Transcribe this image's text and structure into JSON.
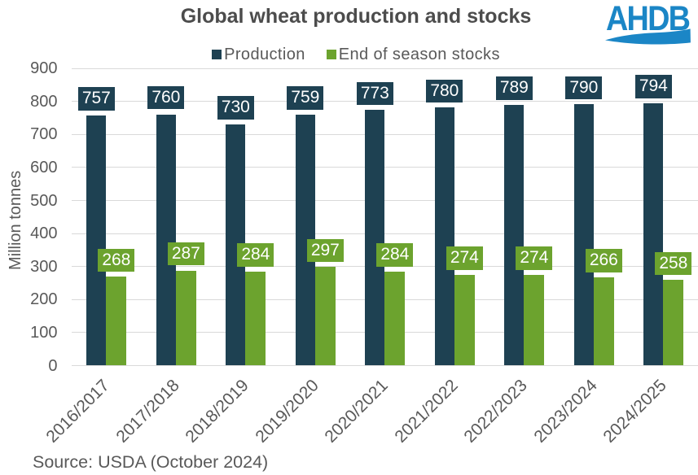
{
  "title": "Global wheat production and stocks",
  "logo": {
    "text": "AHDB",
    "color": "#1b86c6"
  },
  "source_note": "Source: USDA (October 2024)",
  "colors": {
    "production": "#1e4152",
    "stocks": "#6ca32e",
    "title_text": "#4c4c4c",
    "axis_text": "#595959",
    "gridline": "#d9d9d9",
    "label_text": "#ffffff",
    "background": "#ffffff"
  },
  "chart_data": {
    "type": "bar",
    "title": "Global wheat production and stocks",
    "categories": [
      "2016/2017",
      "2017/2018",
      "2018/2019",
      "2019/2020",
      "2020/2021",
      "2021/2022",
      "2022/2023",
      "2023/2024",
      "2024/2025"
    ],
    "series": [
      {
        "name": "Production",
        "color": "#1e4152",
        "values": [
          757,
          760,
          730,
          759,
          773,
          780,
          789,
          790,
          794
        ]
      },
      {
        "name": "End of season stocks",
        "color": "#6ca32e",
        "values": [
          268,
          287,
          284,
          297,
          284,
          274,
          274,
          266,
          258
        ]
      }
    ],
    "xlabel": "",
    "ylabel": "Million tonnes",
    "ylim": [
      0,
      900
    ],
    "yticks": [
      0,
      100,
      200,
      300,
      400,
      500,
      600,
      700,
      800,
      900
    ],
    "grid": true,
    "legend_position": "top",
    "data_labels": "outside-end",
    "source": "Source: USDA (October 2024)"
  }
}
